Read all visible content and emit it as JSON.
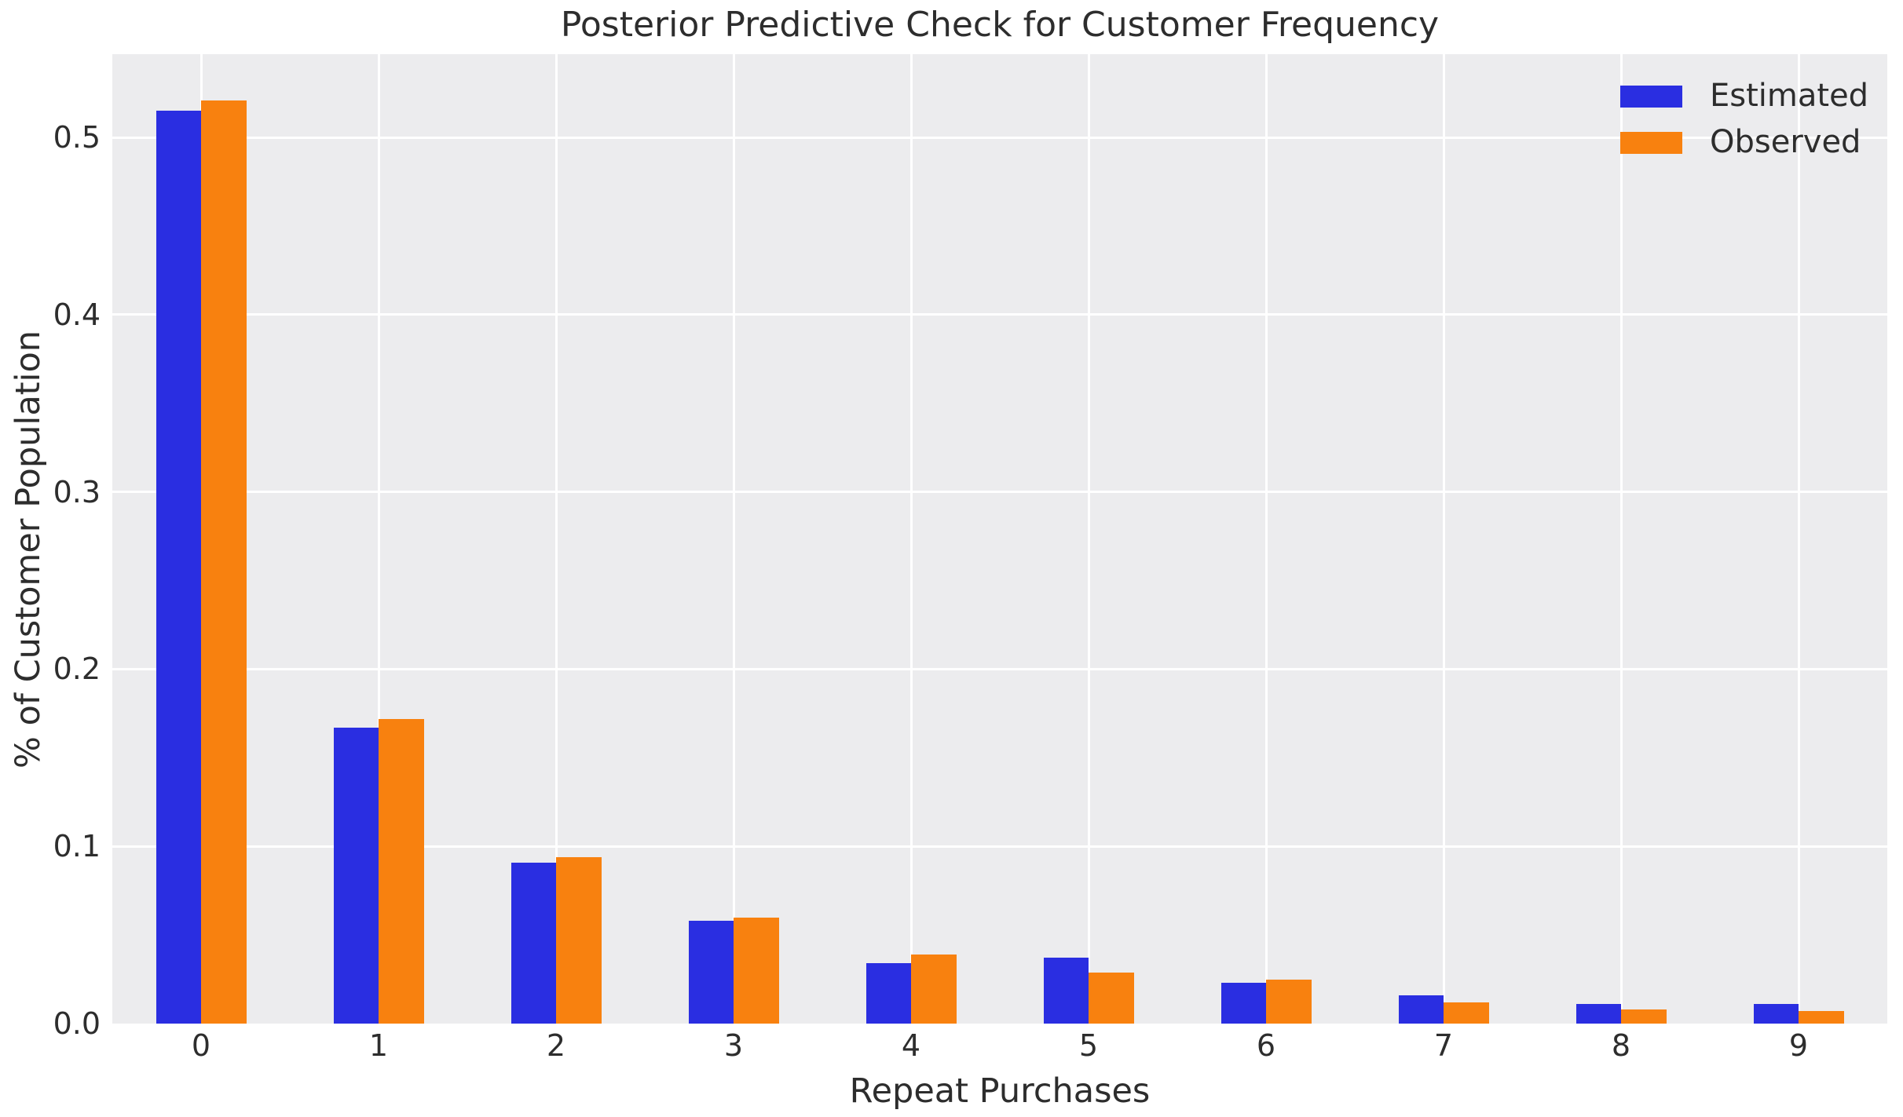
{
  "chart_data": {
    "type": "bar",
    "title": "Posterior Predictive Check for Customer Frequency",
    "xlabel": "Repeat Purchases",
    "ylabel": "% of Customer Population",
    "categories": [
      "0",
      "1",
      "2",
      "3",
      "4",
      "5",
      "6",
      "7",
      "8",
      "9"
    ],
    "series": [
      {
        "name": "Estimated",
        "color": "#2a2ee1",
        "values": [
          0.515,
          0.167,
          0.091,
          0.058,
          0.034,
          0.037,
          0.023,
          0.016,
          0.011,
          0.011
        ]
      },
      {
        "name": "Observed",
        "color": "#f8810f",
        "values": [
          0.521,
          0.172,
          0.094,
          0.06,
          0.039,
          0.029,
          0.025,
          0.012,
          0.008,
          0.007
        ]
      }
    ],
    "ylim": [
      0,
      0.547
    ],
    "yticks": [
      0.0,
      0.1,
      0.2,
      0.3,
      0.4,
      0.5
    ],
    "grid": true,
    "legend_position": "upper right",
    "plot_bg_color": "#ececee",
    "grid_color": "#ffffff",
    "text_color": "#2d2d2d"
  }
}
